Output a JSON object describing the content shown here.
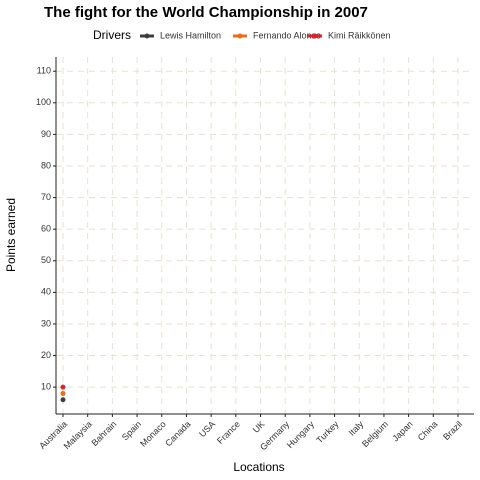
{
  "chart_data": {
    "type": "line",
    "title": "The fight for the World Championship in 2007",
    "x_label": "Locations",
    "y_label": "Points earned",
    "legend_title": "Drivers",
    "legend_position": "top",
    "categories": [
      "Australia",
      "Malaysia",
      "Bahrain",
      "Spain",
      "Monaco",
      "Canada",
      "USA",
      "France",
      "UK",
      "Germany",
      "Hungary",
      "Turkey",
      "Italy",
      "Belgium",
      "Japan",
      "China",
      "Brazil"
    ],
    "series": [
      {
        "name": "Lewis Hamilton",
        "color": "#3d3d3d",
        "values": [
          6,
          null,
          null,
          null,
          null,
          null,
          null,
          null,
          null,
          null,
          null,
          null,
          null,
          null,
          null,
          null,
          null
        ]
      },
      {
        "name": "Fernando Alonso",
        "color": "#f26a11",
        "values": [
          8,
          null,
          null,
          null,
          null,
          null,
          null,
          null,
          null,
          null,
          null,
          null,
          null,
          null,
          null,
          null,
          null
        ]
      },
      {
        "name": "Kimi Räikkönen",
        "color": "#e0202a",
        "values": [
          10,
          null,
          null,
          null,
          null,
          null,
          null,
          null,
          null,
          null,
          null,
          null,
          null,
          null,
          null,
          null,
          null
        ]
      }
    ],
    "ylim": [
      1.5,
      114.5
    ],
    "yticks": [
      10,
      20,
      30,
      40,
      50,
      60,
      70,
      80,
      90,
      100,
      110
    ],
    "grid": true
  }
}
